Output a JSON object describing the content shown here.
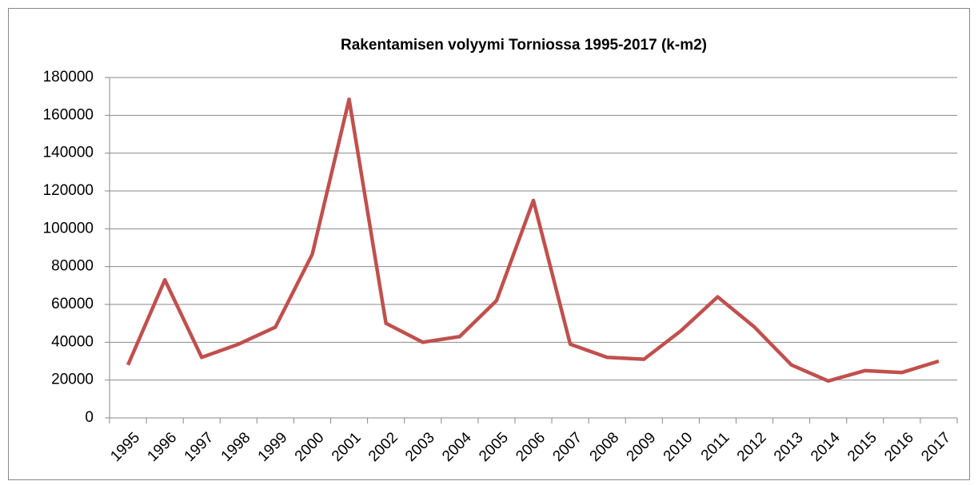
{
  "chart_data": {
    "type": "line",
    "title": "Rakentamisen volyymi Torniossa 1995-2017 (k-m2)",
    "categories": [
      "1995",
      "1996",
      "1997",
      "1998",
      "1999",
      "2000",
      "2001",
      "2002",
      "2003",
      "2004",
      "2005",
      "2006",
      "2007",
      "2008",
      "2009",
      "2010",
      "2011",
      "2012",
      "2013",
      "2014",
      "2015",
      "2016",
      "2017"
    ],
    "values": [
      28000,
      73000,
      32000,
      39000,
      48000,
      86500,
      168500,
      50000,
      40000,
      43000,
      62000,
      115000,
      39000,
      32000,
      31000,
      46000,
      64000,
      48000,
      28000,
      19500,
      25000,
      24000,
      30000
    ],
    "color": "#c0504d",
    "ylim": [
      0,
      180000
    ],
    "yticks": [
      0,
      20000,
      40000,
      60000,
      80000,
      100000,
      120000,
      140000,
      160000,
      180000
    ],
    "grid": true
  }
}
